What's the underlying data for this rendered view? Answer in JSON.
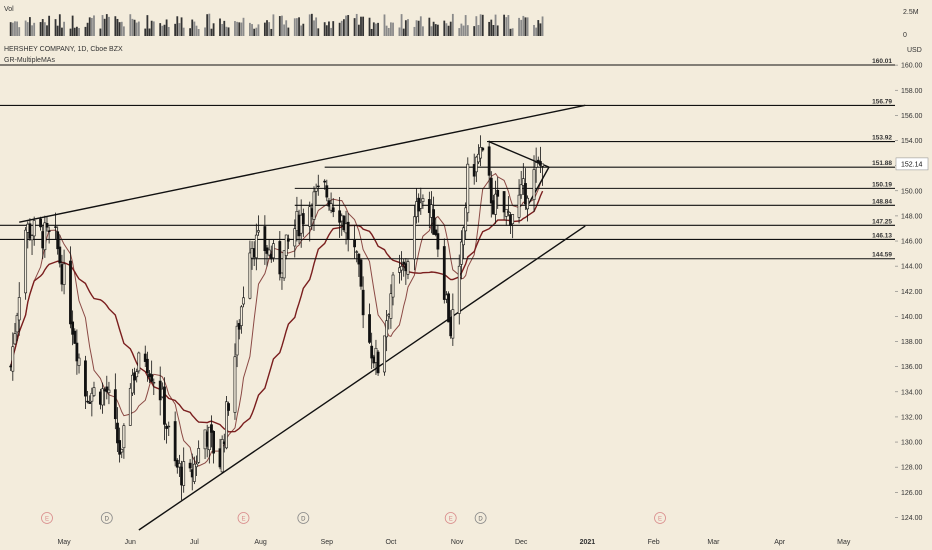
{
  "chart_data": {
    "type": "candlestick",
    "symbol_line": "HERSHEY COMPANY, 1D, Cboe BZX",
    "indicator_line": "GR-MultipleMAs",
    "volume_label": "Vol",
    "currency": "USD",
    "last_price": "152.14",
    "price_axis": {
      "min": 123,
      "max": 162,
      "ticks": [
        "124.00",
        "126.00",
        "128.00",
        "130.00",
        "132.00",
        "134.00",
        "136.00",
        "138.00",
        "140.00",
        "142.00",
        "144.00",
        "146.00",
        "148.00",
        "150.00",
        "152.00",
        "154.00",
        "156.00",
        "158.00",
        "160.00"
      ]
    },
    "volume_axis": {
      "ticks": [
        "2.5M",
        "0"
      ]
    },
    "x_axis": {
      "labels": [
        "May",
        "Jun",
        "Jul",
        "Aug",
        "Sep",
        "Oct",
        "Nov",
        "Dec",
        "2021",
        "Feb",
        "Mar",
        "Apr",
        "May"
      ]
    },
    "horizontal_levels": [
      "160.01",
      "156.79",
      "153.92",
      "151.88",
      "150.19",
      "148.84",
      "147.25",
      "146.13",
      "144.59"
    ],
    "event_markers": [
      {
        "letter": "E",
        "date": "2020-04-23"
      },
      {
        "letter": "D",
        "date": "2020-05-21"
      },
      {
        "letter": "E",
        "date": "2020-07-24"
      },
      {
        "letter": "D",
        "date": "2020-08-21"
      },
      {
        "letter": "E",
        "date": "2020-10-29"
      },
      {
        "letter": "D",
        "date": "2020-11-12"
      },
      {
        "letter": "E",
        "date": "2021-02-04"
      }
    ],
    "price_series_anchors": [
      {
        "date": "2020-04-06",
        "close": 136.0
      },
      {
        "date": "2020-04-13",
        "close": 147.0
      },
      {
        "date": "2020-04-20",
        "close": 146.5
      },
      {
        "date": "2020-04-27",
        "close": 146.0
      },
      {
        "date": "2020-05-01",
        "close": 143.0
      },
      {
        "date": "2020-05-11",
        "close": 134.0
      },
      {
        "date": "2020-05-21",
        "close": 134.0
      },
      {
        "date": "2020-05-28",
        "close": 128.5
      },
      {
        "date": "2020-06-01",
        "close": 135.0
      },
      {
        "date": "2020-06-08",
        "close": 137.0
      },
      {
        "date": "2020-06-15",
        "close": 134.0
      },
      {
        "date": "2020-06-22",
        "close": 128.0
      },
      {
        "date": "2020-06-29",
        "close": 127.0
      },
      {
        "date": "2020-07-06",
        "close": 131.0
      },
      {
        "date": "2020-07-13",
        "close": 128.5
      },
      {
        "date": "2020-07-20",
        "close": 137.0
      },
      {
        "date": "2020-07-27",
        "close": 146.0
      },
      {
        "date": "2020-08-03",
        "close": 145.5
      },
      {
        "date": "2020-08-10",
        "close": 144.0
      },
      {
        "date": "2020-08-17",
        "close": 147.0
      },
      {
        "date": "2020-08-24",
        "close": 149.0
      },
      {
        "date": "2020-08-31",
        "close": 150.0
      },
      {
        "date": "2020-09-07",
        "close": 148.5
      },
      {
        "date": "2020-09-14",
        "close": 145.0
      },
      {
        "date": "2020-09-21",
        "close": 138.0
      },
      {
        "date": "2020-09-25",
        "close": 136.0
      },
      {
        "date": "2020-10-01",
        "close": 142.0
      },
      {
        "date": "2020-10-08",
        "close": 144.0
      },
      {
        "date": "2020-10-15",
        "close": 150.0
      },
      {
        "date": "2020-10-22",
        "close": 147.0
      },
      {
        "date": "2020-10-29",
        "close": 139.0
      },
      {
        "date": "2020-11-02",
        "close": 143.0
      },
      {
        "date": "2020-11-06",
        "close": 151.0
      },
      {
        "date": "2020-11-12",
        "close": 153.0
      },
      {
        "date": "2020-11-18",
        "close": 149.0
      },
      {
        "date": "2020-11-25",
        "close": 148.0
      },
      {
        "date": "2020-12-01",
        "close": 149.5
      },
      {
        "date": "2020-12-08",
        "close": 151.5
      },
      {
        "date": "2020-12-11",
        "close": 152.14
      }
    ],
    "trendlines": [
      {
        "from": {
          "date": "2020-04-10",
          "price": 147.5
        },
        "to": {
          "date": "2020-12-31",
          "price": 156.8
        }
      },
      {
        "from": {
          "date": "2020-06-05",
          "price": 123.0
        },
        "to": {
          "date": "2020-12-31",
          "price": 147.2
        }
      },
      {
        "from": {
          "date": "2020-11-16",
          "price": 153.9
        },
        "to": {
          "date": "2020-12-14",
          "price": 151.88
        }
      },
      {
        "from": {
          "date": "2020-12-14",
          "price": 151.88
        },
        "to": {
          "date": "2020-12-03",
          "price": 148.5
        }
      }
    ],
    "moving_averages": [
      {
        "color": "#8b4a45",
        "period_label": "short"
      },
      {
        "color": "#7a1e1e",
        "period_label": "long"
      }
    ],
    "colors": {
      "background": "#f3ecdc",
      "candle": "#111111",
      "level_line": "#111111",
      "ma_short": "#8b4a45",
      "ma_long": "#7a1e1e",
      "price_tag_bg": "#ffffff"
    }
  }
}
